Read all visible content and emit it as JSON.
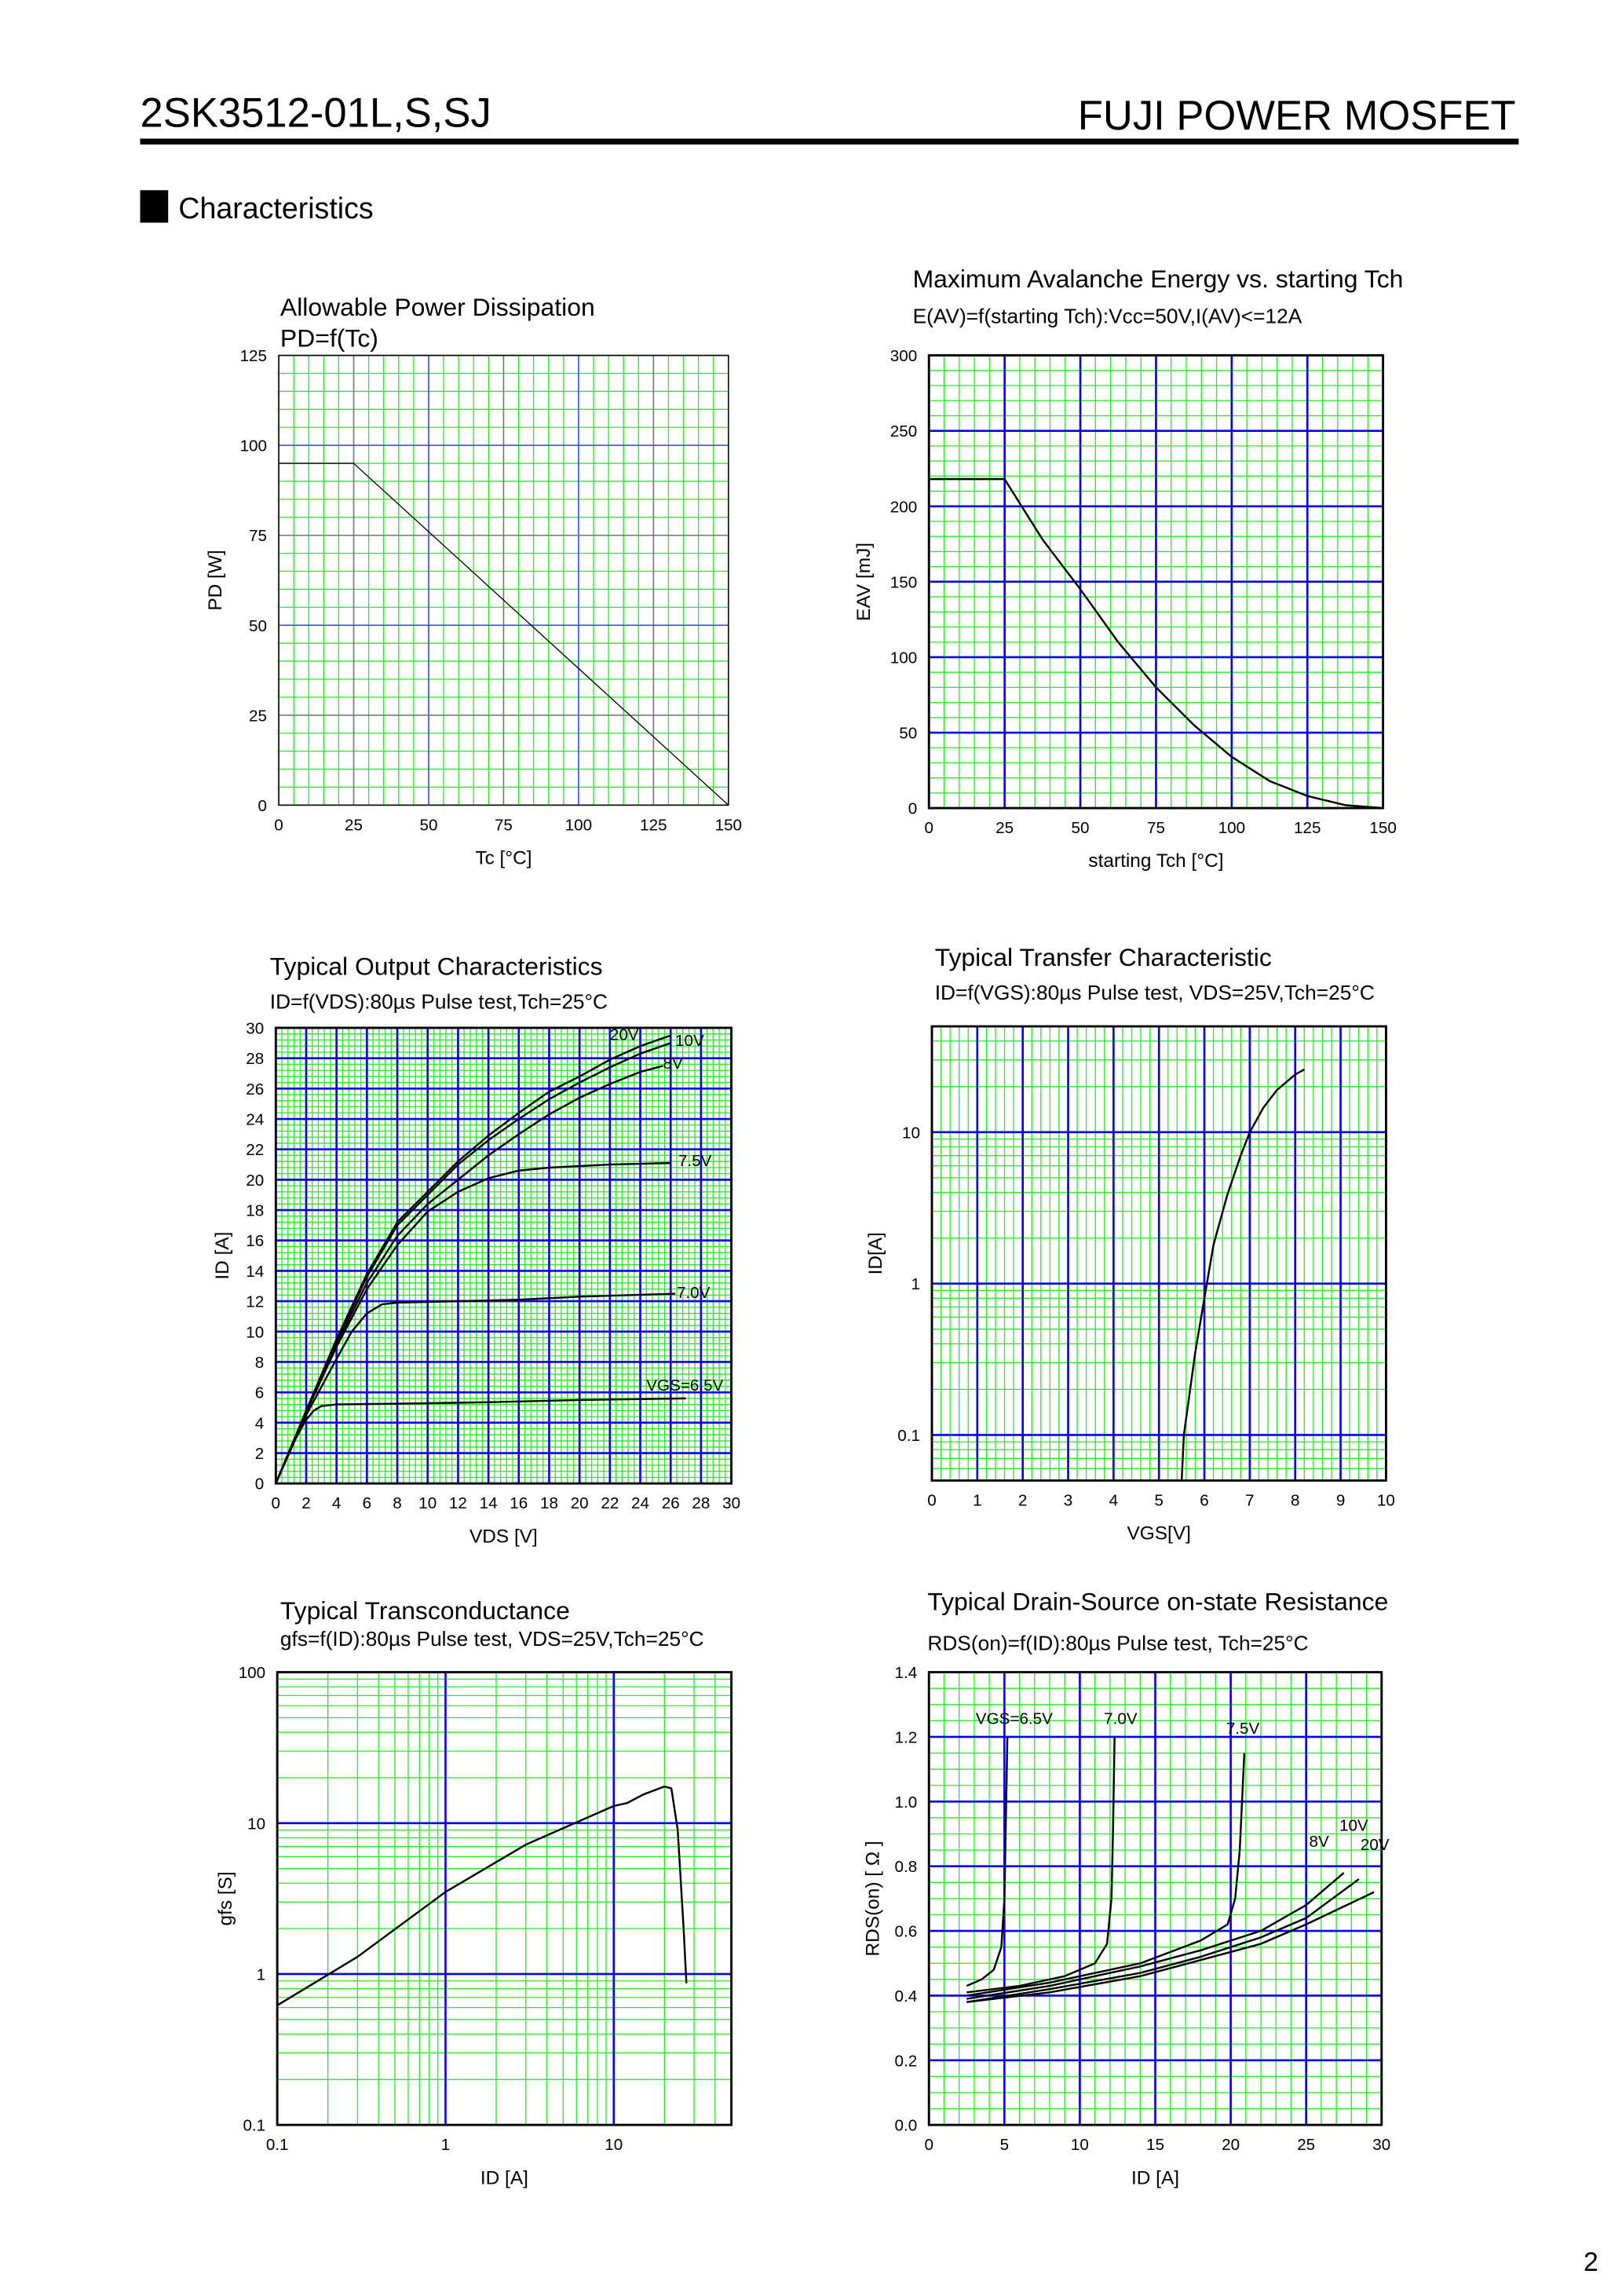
{
  "header": {
    "part_number": "2SK3512-01L,S,SJ",
    "product_line": "FUJI POWER MOSFET"
  },
  "section": {
    "title": "Characteristics"
  },
  "page_number": "2",
  "chart_data": [
    {
      "id": "pd",
      "type": "line",
      "title": "Allowable Power Dissipation",
      "subtitle": "PD=f(Tc)",
      "xlabel": "Tc [°C]",
      "ylabel": "PD [W]",
      "xlim": [
        0,
        150
      ],
      "ylim": [
        0,
        125
      ],
      "xticks": [
        0,
        25,
        50,
        75,
        100,
        125,
        150
      ],
      "yticks": [
        0,
        25,
        50,
        75,
        100,
        125
      ],
      "grid": true,
      "series": [
        {
          "x": [
            0,
            25,
            150
          ],
          "y": [
            95,
            95,
            0
          ]
        }
      ]
    },
    {
      "id": "eav",
      "type": "line",
      "title": "Maximum Avalanche Energy vs. starting Tch",
      "subtitle": "E(AV)=f(starting Tch):Vcc=50V,I(AV)<=12A",
      "xlabel": "starting Tch [°C]",
      "ylabel": "EAV [mJ]",
      "xlim": [
        0,
        150
      ],
      "ylim": [
        0,
        300
      ],
      "xticks": [
        0,
        25,
        50,
        75,
        100,
        125,
        150
      ],
      "yticks": [
        0,
        50,
        100,
        150,
        200,
        250,
        300
      ],
      "grid": true,
      "series": [
        {
          "x": [
            0,
            25,
            37.5,
            50,
            62.5,
            75,
            87.5,
            100,
            112.5,
            125,
            137.5,
            150
          ],
          "y": [
            218,
            218,
            178,
            145,
            110,
            80,
            55,
            34,
            18,
            8,
            2,
            0
          ]
        }
      ]
    },
    {
      "id": "output",
      "type": "line",
      "title": "Typical Output Characteristics",
      "subtitle": "ID=f(VDS):80µs Pulse test,Tch=25°C",
      "xlabel": "VDS [V]",
      "ylabel": "ID [A]",
      "xlim": [
        0,
        30
      ],
      "ylim": [
        0,
        30
      ],
      "xticks": [
        0,
        2,
        4,
        6,
        8,
        10,
        12,
        14,
        16,
        18,
        20,
        22,
        24,
        26,
        28,
        30
      ],
      "yticks": [
        0,
        2,
        4,
        6,
        8,
        10,
        12,
        14,
        16,
        18,
        20,
        22,
        24,
        26,
        28,
        30
      ],
      "grid": true,
      "series": [
        {
          "name": "20V",
          "label_at": [
            22,
            29.2
          ],
          "x": [
            0,
            2,
            4,
            6,
            8,
            10,
            12,
            14,
            16,
            18,
            20,
            22,
            24,
            26
          ],
          "y": [
            0,
            4.8,
            9.5,
            13.8,
            17.2,
            19.2,
            21.2,
            22.9,
            24.4,
            25.8,
            26.8,
            27.9,
            28.8,
            29.5
          ]
        },
        {
          "name": "10V",
          "label_at": [
            26.3,
            28.8
          ],
          "x": [
            0,
            2,
            4,
            6,
            8,
            10,
            12,
            14,
            16,
            18,
            20,
            22,
            24,
            26
          ],
          "y": [
            0,
            4.8,
            9.4,
            13.6,
            17,
            19,
            21,
            22.6,
            24,
            25.3,
            26.4,
            27.4,
            28.3,
            29
          ]
        },
        {
          "name": "8V",
          "label_at": [
            25.5,
            27.3
          ],
          "x": [
            0,
            2,
            4,
            6,
            8,
            10,
            12,
            14,
            16,
            18,
            20,
            22,
            24,
            25.5
          ],
          "y": [
            0,
            4.7,
            9.2,
            13.2,
            16.3,
            18.4,
            20,
            21.6,
            23,
            24.3,
            25.4,
            26.3,
            27.1,
            27.5
          ]
        },
        {
          "name": "7.5V",
          "label_at": [
            26.5,
            20.9
          ],
          "x": [
            0,
            2,
            4,
            6,
            8,
            10,
            12,
            14,
            16,
            18,
            22,
            26
          ],
          "y": [
            0,
            4.7,
            9,
            12.8,
            15.7,
            17.9,
            19.2,
            20.1,
            20.6,
            20.8,
            21,
            21.1
          ]
        },
        {
          "name": "7.0V",
          "label_at": [
            26.4,
            12.2
          ],
          "x": [
            0,
            2,
            4,
            5,
            6,
            7,
            8,
            12,
            16,
            20,
            26.3
          ],
          "y": [
            0,
            4.5,
            8.2,
            10,
            11.2,
            11.8,
            11.9,
            12,
            12.1,
            12.3,
            12.5
          ]
        },
        {
          "name": "VGS=6.5V",
          "label_at": [
            24.4,
            6.1
          ],
          "x": [
            0,
            1,
            2,
            2.5,
            3,
            4,
            8,
            14,
            20,
            27
          ],
          "y": [
            0,
            2.4,
            4.2,
            4.8,
            5.1,
            5.2,
            5.25,
            5.35,
            5.5,
            5.6
          ]
        }
      ]
    },
    {
      "id": "transfer",
      "type": "line",
      "title": "Typical Transfer Characteristic",
      "subtitle": "ID=f(VGS):80µs Pulse test, VDS=25V,Tch=25°C",
      "xlabel": "VGS[V]",
      "ylabel": "ID[A]",
      "xlim": [
        0,
        10
      ],
      "ylim": [
        0.05,
        50
      ],
      "yscale": "log",
      "xticks": [
        0,
        1,
        2,
        3,
        4,
        5,
        6,
        7,
        8,
        9,
        10
      ],
      "yticks": [
        0.1,
        1,
        10
      ],
      "grid": true,
      "series": [
        {
          "x": [
            5.5,
            5.55,
            5.8,
            6.0,
            6.2,
            6.5,
            6.8,
            7.0,
            7.3,
            7.6,
            8.0,
            8.2
          ],
          "y": [
            0.05,
            0.1,
            0.35,
            0.8,
            1.8,
            3.8,
            7,
            10,
            14.5,
            19,
            24,
            26
          ]
        }
      ]
    },
    {
      "id": "gfs",
      "type": "line",
      "title": "Typical Transconductance",
      "subtitle": "gfs=f(ID):80µs Pulse test, VDS=25V,Tch=25°C",
      "xlabel": "ID [A]",
      "ylabel": "gfs [S]",
      "xlim": [
        0.1,
        50
      ],
      "ylim": [
        0.1,
        100
      ],
      "xscale": "log",
      "yscale": "log",
      "xticks": [
        0.1,
        1,
        10
      ],
      "yticks": [
        0.1,
        1,
        10,
        100
      ],
      "grid": true,
      "series": [
        {
          "x": [
            0.1,
            0.3,
            1,
            3,
            10,
            12,
            15,
            20,
            22,
            24,
            26,
            27
          ],
          "y": [
            0.62,
            1.3,
            3.5,
            7.2,
            13,
            13.6,
            15.5,
            17.5,
            17,
            9,
            2,
            0.87
          ]
        }
      ]
    },
    {
      "id": "rds",
      "type": "line",
      "title": "Typical Drain-Source on-state Resistance",
      "subtitle": "RDS(on)=f(ID):80µs Pulse test, Tch=25°C",
      "xlabel": "ID [A]",
      "ylabel": "RDS(on) [ Ω ]",
      "xlim": [
        0,
        30
      ],
      "ylim": [
        0,
        1.4
      ],
      "xticks": [
        0,
        5,
        10,
        15,
        20,
        25,
        30
      ],
      "yticks": [
        0.0,
        0.2,
        0.4,
        0.6,
        0.8,
        1.0,
        1.2,
        1.4
      ],
      "ytick_labels": [
        "0.0",
        "0.2",
        "0.4",
        "0.6",
        "0.8",
        "1.0",
        "1.2",
        "1.4"
      ],
      "grid": true,
      "series": [
        {
          "name": "VGS=6.5V",
          "label_at": [
            3.1,
            1.24
          ],
          "x": [
            2.5,
            3.5,
            4.3,
            4.8,
            5.0,
            5.1,
            5.2
          ],
          "y": [
            0.43,
            0.45,
            0.48,
            0.55,
            0.7,
            0.95,
            1.2
          ]
        },
        {
          "name": "7.0V",
          "label_at": [
            11.6,
            1.24
          ],
          "x": [
            2.5,
            6,
            9,
            11,
            11.8,
            12.1,
            12.2,
            12.3
          ],
          "y": [
            0.41,
            0.43,
            0.46,
            0.5,
            0.56,
            0.7,
            0.9,
            1.2
          ]
        },
        {
          "name": "7.5V",
          "label_at": [
            19.7,
            1.21
          ],
          "x": [
            2.5,
            8,
            14,
            18,
            19.8,
            20.3,
            20.6,
            20.9
          ],
          "y": [
            0.4,
            0.44,
            0.5,
            0.57,
            0.62,
            0.7,
            0.85,
            1.15
          ]
        },
        {
          "name": "8V",
          "label_at": [
            25.2,
            0.86
          ],
          "x": [
            2.5,
            8,
            14,
            18,
            22,
            25,
            27.5
          ],
          "y": [
            0.39,
            0.43,
            0.49,
            0.54,
            0.6,
            0.68,
            0.78
          ]
        },
        {
          "name": "10V",
          "label_at": [
            27.2,
            0.91
          ],
          "x": [
            2.5,
            8,
            14,
            18,
            22,
            25,
            28.5
          ],
          "y": [
            0.38,
            0.42,
            0.47,
            0.52,
            0.58,
            0.64,
            0.76
          ]
        },
        {
          "name": "20V",
          "label_at": [
            28.6,
            0.85
          ],
          "x": [
            2.5,
            8,
            14,
            18,
            22,
            25,
            29.5
          ],
          "y": [
            0.38,
            0.41,
            0.46,
            0.51,
            0.56,
            0.62,
            0.72
          ]
        }
      ]
    }
  ]
}
